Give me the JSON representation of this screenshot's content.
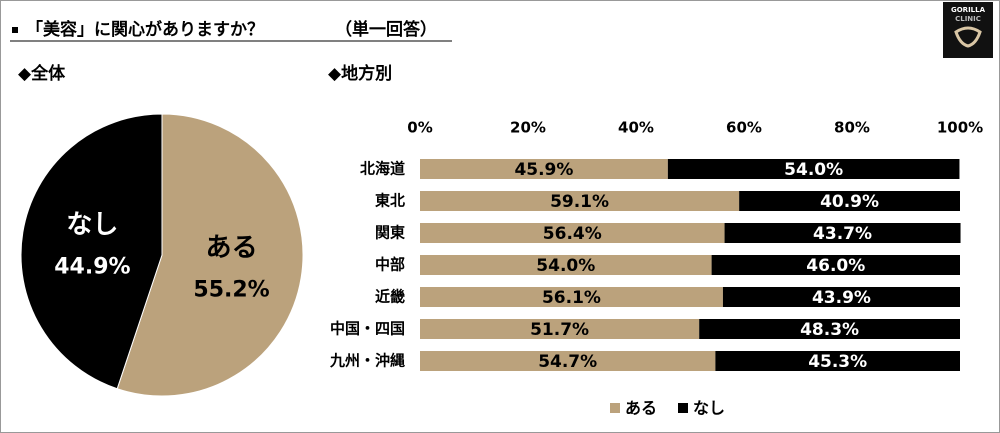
{
  "header": {
    "title": "「美容」に関心がありますか？",
    "note": "（単一回答）",
    "logo": [
      "GORILLA",
      "CLINIC"
    ]
  },
  "chart_data": [
    {
      "type": "pie",
      "title": "◆全体",
      "categories": [
        "ある",
        "なし"
      ],
      "values": [
        55.2,
        44.9
      ],
      "value_labels": [
        "55.2%",
        "44.9%"
      ],
      "colors": [
        "#bba27c",
        "#000000"
      ]
    },
    {
      "type": "stacked_barh",
      "title": "◆地方別",
      "categories": [
        "北海道",
        "東北",
        "関東",
        "中部",
        "近畿",
        "中国・四国",
        "九州・沖縄"
      ],
      "series": [
        {
          "name": "ある",
          "color": "#bba27c",
          "values": [
            45.9,
            59.1,
            56.4,
            54.0,
            56.1,
            51.7,
            54.7
          ],
          "value_labels": [
            "45.9%",
            "59.1%",
            "56.4%",
            "54.0%",
            "56.1%",
            "51.7%",
            "54.7%"
          ]
        },
        {
          "name": "なし",
          "color": "#000000",
          "values": [
            54.0,
            40.9,
            43.7,
            46.0,
            43.9,
            48.3,
            45.3
          ],
          "value_labels": [
            "54.0%",
            "40.9%",
            "43.7%",
            "46.0%",
            "43.9%",
            "48.3%",
            "45.3%"
          ]
        }
      ],
      "xlim": [
        0,
        100
      ],
      "xticks": [
        {
          "value": 0,
          "label": "0%"
        },
        {
          "value": 20,
          "label": "20%"
        },
        {
          "value": 40,
          "label": "40%"
        },
        {
          "value": 60,
          "label": "60%"
        },
        {
          "value": 80,
          "label": "80%"
        },
        {
          "value": 100,
          "label": "100%"
        }
      ],
      "legend": "bottom"
    }
  ]
}
